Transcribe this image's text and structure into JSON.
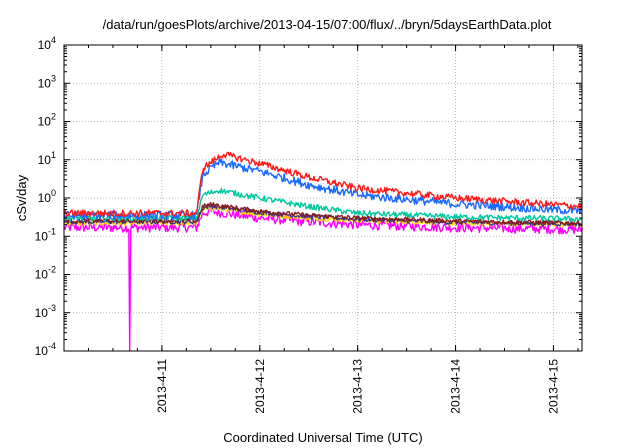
{
  "chart_data": {
    "type": "line",
    "title": "/data/run/goesPlots/archive/2013-04-15/07:00/flux/../bryn/5daysEarthData.plot",
    "xlabel": "Coordinated Universal Time (UTC)",
    "ylabel": "cSv/day",
    "xlim": [
      "2013-04-10T00:00",
      "2013-04-15T07:00"
    ],
    "ylim": [
      0.0001,
      10000
    ],
    "y_scale": "log",
    "grid": true,
    "x_ticks": [
      "2013-4-11",
      "2013-4-12",
      "2013-4-13",
      "2013-4-14",
      "2013-4-15"
    ],
    "y_ticks": [
      {
        "value": 0.0001,
        "base": "10",
        "exp": "-4"
      },
      {
        "value": 0.001,
        "base": "10",
        "exp": "-3"
      },
      {
        "value": 0.01,
        "base": "10",
        "exp": "-2"
      },
      {
        "value": 0.1,
        "base": "10",
        "exp": "-1"
      },
      {
        "value": 1,
        "base": "10",
        "exp": "0"
      },
      {
        "value": 10,
        "base": "10",
        "exp": "1"
      },
      {
        "value": 100,
        "base": "10",
        "exp": "2"
      },
      {
        "value": 1000,
        "base": "10",
        "exp": "3"
      },
      {
        "value": 10000,
        "base": "10",
        "exp": "4"
      }
    ],
    "series": [
      {
        "color": "#ff00ff",
        "noise": 0.25,
        "dip": {
          "x": "2013-04-10T16:00",
          "y": 0.0001
        },
        "points": [
          [
            "2013-04-10T00:00",
            0.17
          ],
          [
            "2013-04-11T08:30",
            0.17
          ],
          [
            "2013-04-11T10:00",
            0.4
          ],
          [
            "2013-04-11T12:00",
            0.45
          ],
          [
            "2013-04-12T00:00",
            0.3
          ],
          [
            "2013-04-12T12:00",
            0.24
          ],
          [
            "2013-04-13T00:00",
            0.2
          ],
          [
            "2013-04-14T00:00",
            0.17
          ],
          [
            "2013-04-15T07:00",
            0.15
          ]
        ]
      },
      {
        "color": "#ffd700",
        "noise": 0.12,
        "points": [
          [
            "2013-04-10T00:00",
            0.22
          ],
          [
            "2013-04-11T08:30",
            0.22
          ],
          [
            "2013-04-11T10:00",
            0.5
          ],
          [
            "2013-04-11T12:00",
            0.55
          ],
          [
            "2013-04-12T00:00",
            0.38
          ],
          [
            "2013-04-12T12:00",
            0.3
          ],
          [
            "2013-04-13T00:00",
            0.26
          ],
          [
            "2013-04-14T00:00",
            0.22
          ],
          [
            "2013-04-15T07:00",
            0.2
          ]
        ]
      },
      {
        "color": "#3a3a8a",
        "noise": 0.12,
        "points": [
          [
            "2013-04-10T00:00",
            0.24
          ],
          [
            "2013-04-11T08:30",
            0.24
          ],
          [
            "2013-04-11T10:00",
            0.55
          ],
          [
            "2013-04-11T12:00",
            0.62
          ],
          [
            "2013-04-12T00:00",
            0.42
          ],
          [
            "2013-04-12T12:00",
            0.33
          ],
          [
            "2013-04-13T00:00",
            0.28
          ],
          [
            "2013-04-14T00:00",
            0.23
          ],
          [
            "2013-04-15T07:00",
            0.21
          ]
        ]
      },
      {
        "color": "#8b1a1a",
        "noise": 0.12,
        "points": [
          [
            "2013-04-10T00:00",
            0.26
          ],
          [
            "2013-04-11T08:30",
            0.26
          ],
          [
            "2013-04-11T10:00",
            0.6
          ],
          [
            "2013-04-11T12:00",
            0.68
          ],
          [
            "2013-04-12T00:00",
            0.45
          ],
          [
            "2013-04-12T12:00",
            0.35
          ],
          [
            "2013-04-13T00:00",
            0.3
          ],
          [
            "2013-04-14T00:00",
            0.25
          ],
          [
            "2013-04-15T07:00",
            0.22
          ]
        ]
      },
      {
        "color": "#00c8a0",
        "noise": 0.15,
        "points": [
          [
            "2013-04-10T00:00",
            0.3
          ],
          [
            "2013-04-11T08:30",
            0.3
          ],
          [
            "2013-04-11T10:00",
            1.2
          ],
          [
            "2013-04-11T14:00",
            1.6
          ],
          [
            "2013-04-12T00:00",
            1.0
          ],
          [
            "2013-04-12T12:00",
            0.6
          ],
          [
            "2013-04-13T00:00",
            0.4
          ],
          [
            "2013-04-14T00:00",
            0.32
          ],
          [
            "2013-04-15T07:00",
            0.28
          ]
        ]
      },
      {
        "color": "#1a6aff",
        "noise": 0.22,
        "points": [
          [
            "2013-04-10T00:00",
            0.35
          ],
          [
            "2013-04-11T08:30",
            0.35
          ],
          [
            "2013-04-11T10:00",
            4
          ],
          [
            "2013-04-11T14:00",
            8.5
          ],
          [
            "2013-04-12T00:00",
            5
          ],
          [
            "2013-04-12T12:00",
            2.2
          ],
          [
            "2013-04-13T00:00",
            1.2
          ],
          [
            "2013-04-14T00:00",
            0.7
          ],
          [
            "2013-04-15T07:00",
            0.45
          ]
        ]
      },
      {
        "color": "#ff1a1a",
        "noise": 0.18,
        "points": [
          [
            "2013-04-10T00:00",
            0.4
          ],
          [
            "2013-04-11T08:30",
            0.4
          ],
          [
            "2013-04-11T10:00",
            6
          ],
          [
            "2013-04-11T15:00",
            14
          ],
          [
            "2013-04-12T00:00",
            8
          ],
          [
            "2013-04-12T12:00",
            3.5
          ],
          [
            "2013-04-13T00:00",
            1.8
          ],
          [
            "2013-04-14T00:00",
            1.0
          ],
          [
            "2013-04-15T07:00",
            0.6
          ]
        ]
      }
    ]
  }
}
